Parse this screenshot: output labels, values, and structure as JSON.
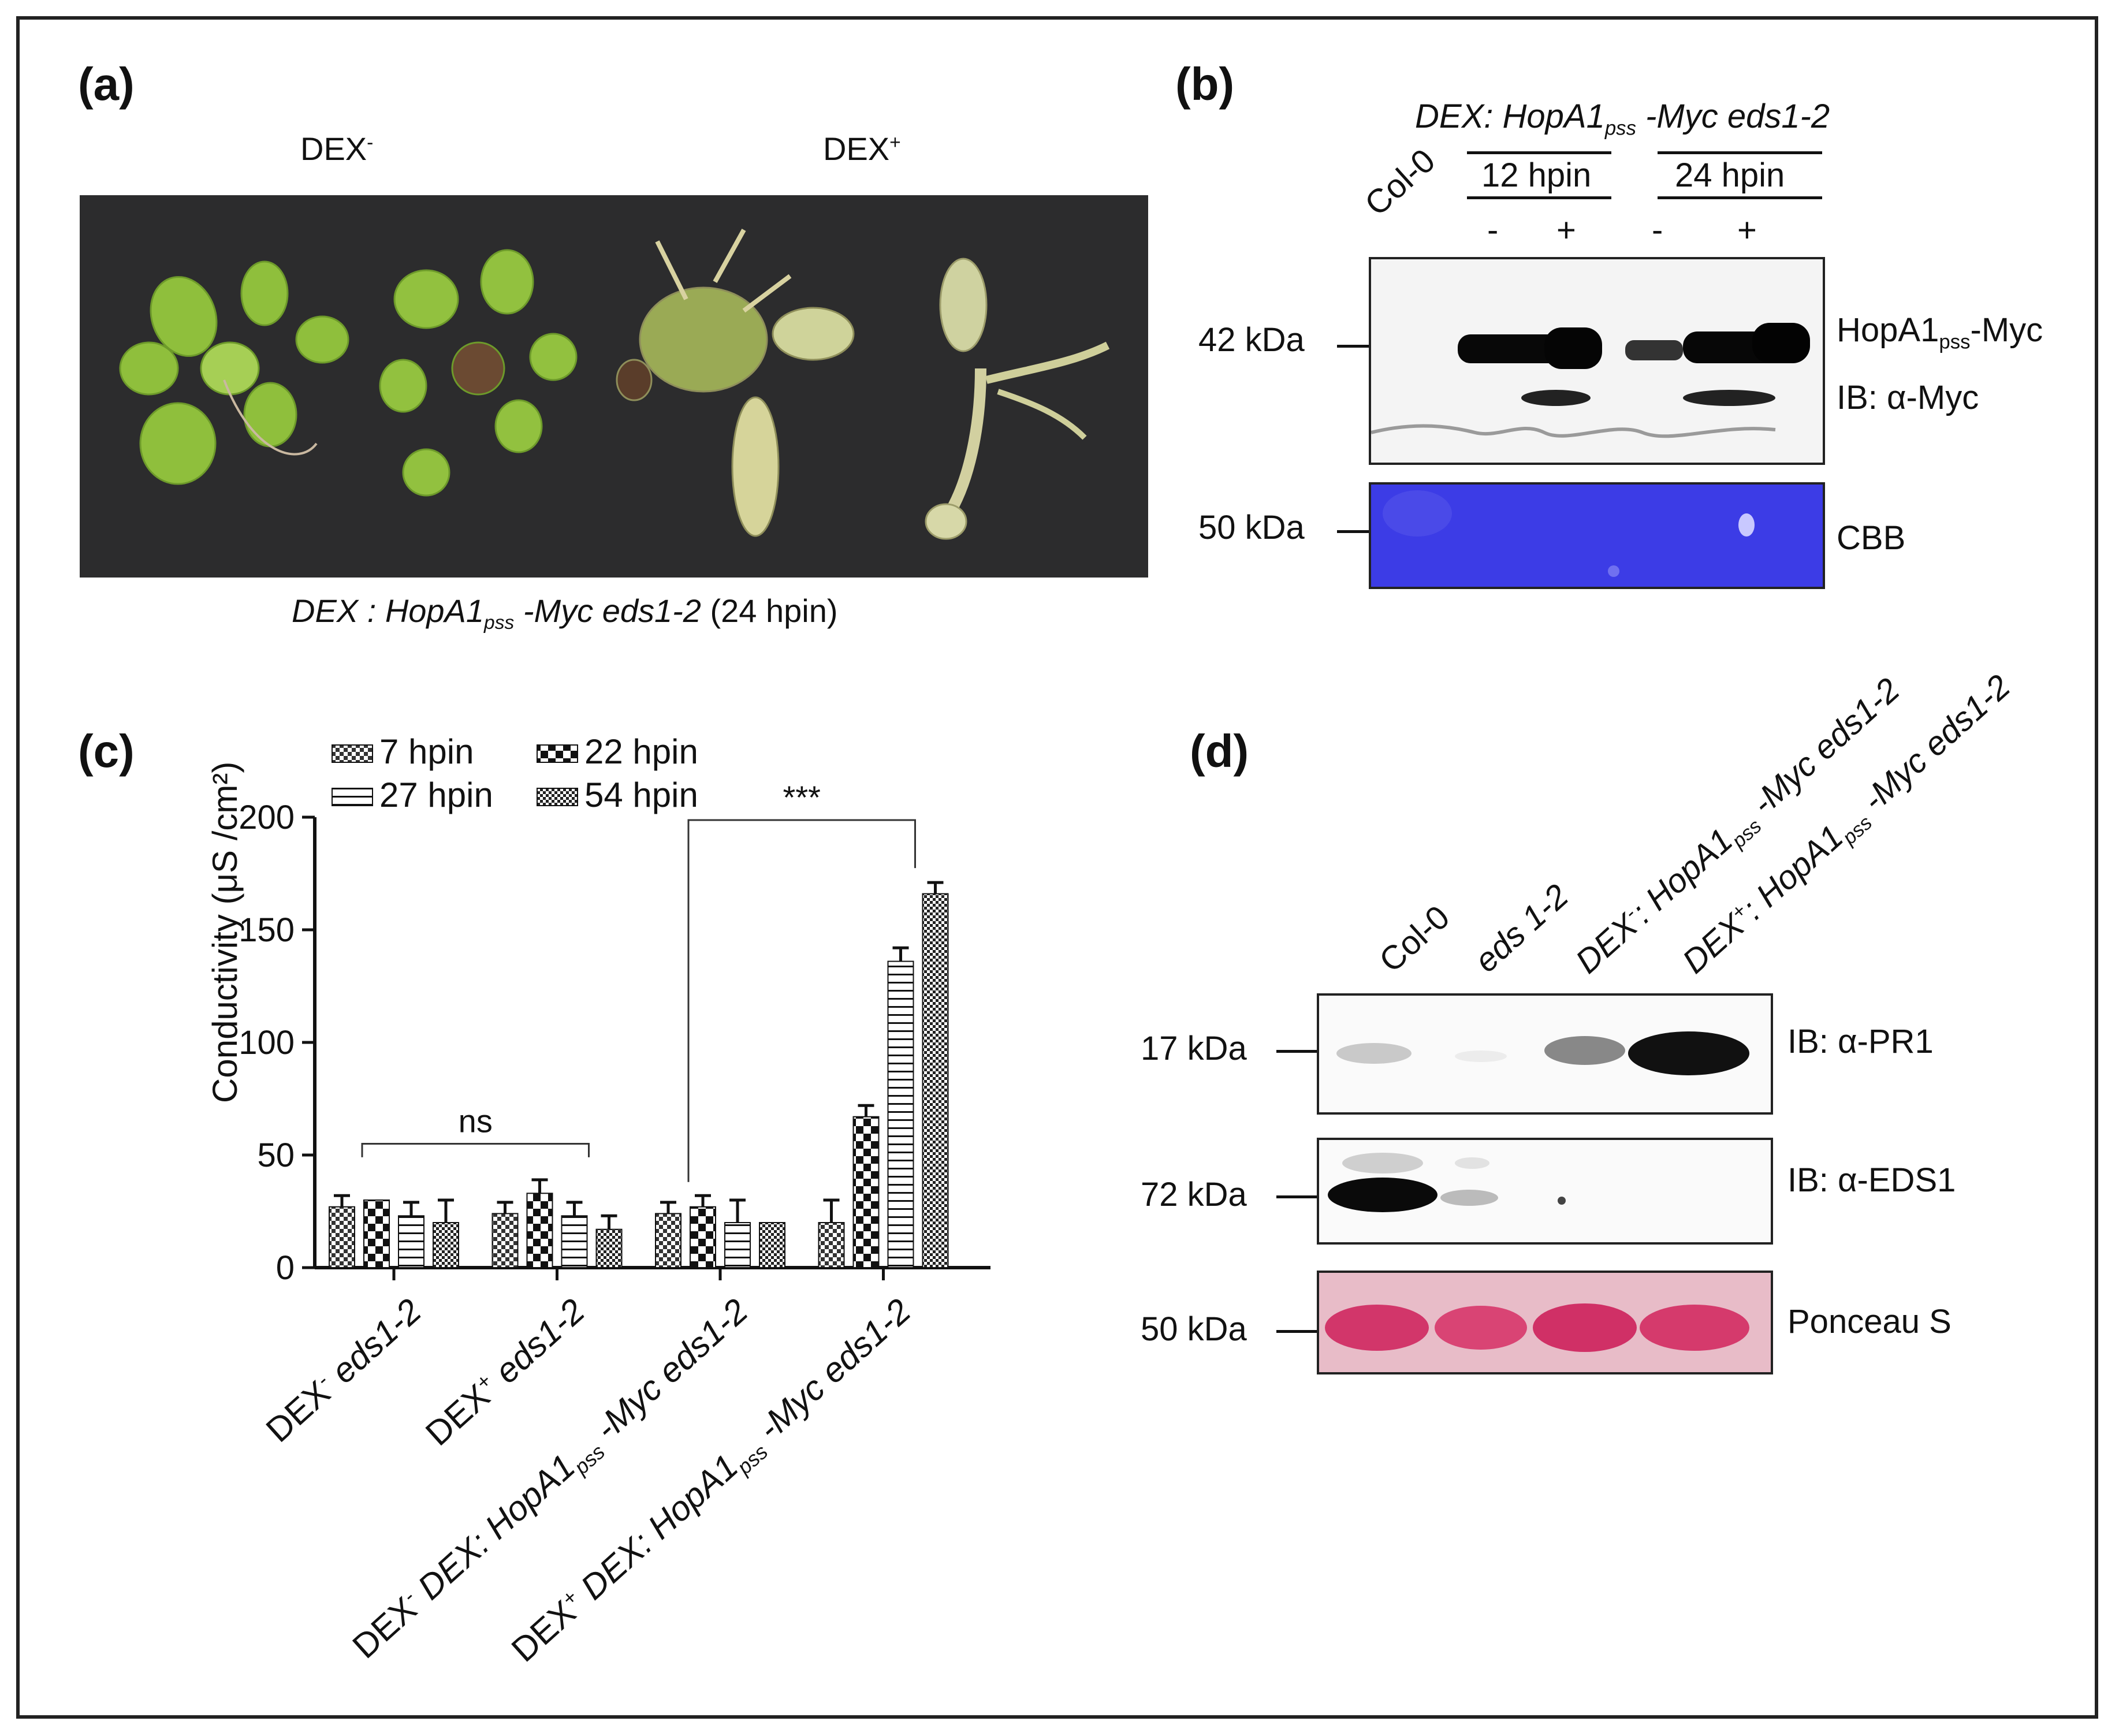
{
  "panels": {
    "a": {
      "label": "(a)",
      "dex_minus": "DEX",
      "dex_minus_sup": "-",
      "dex_plus": "DEX",
      "dex_plus_sup": "+",
      "caption_prefix": "DEX : HopA1",
      "caption_sub": "pss",
      "caption_mid": " -Myc eds1-2",
      "caption_suffix": " (24 hpin)"
    },
    "b": {
      "label": "(b)",
      "construct_prefix": "DEX: HopA1",
      "construct_sub": "pss",
      "construct_suffix": " -Myc eds1-2",
      "col0": "Col-0",
      "time1": "12 hpin",
      "time2": "24 hpin",
      "signs": [
        "-",
        "+",
        "-",
        "+"
      ],
      "marker1": "42 kDa",
      "marker2": "50 kDa",
      "band_label_prefix": "HopA1",
      "band_label_sub": "pss",
      "band_label_suffix": "-Myc",
      "ib_label": "IB: α-Myc",
      "stain_label": "CBB"
    },
    "d": {
      "label": "(d)",
      "lanes": [
        "Col-0",
        "eds 1-2"
      ],
      "lane3_prefix": "DEX",
      "lane3_sup": "-",
      "lane3_mid": ": HopA1",
      "lane3_sub": "pss",
      "lane3_suffix": " -Myc eds1-2",
      "lane4_prefix": "DEX",
      "lane4_sup": "+",
      "lane4_mid": ": HopA1",
      "lane4_sub": "pss",
      "lane4_suffix": " -Myc eds1-2",
      "markers": [
        "17 kDa",
        "72 kDa",
        "50 kDa"
      ],
      "blot_labels": [
        "IB: α-PR1",
        "IB: α-EDS1",
        "Ponceau S"
      ]
    }
  },
  "chart_data": {
    "type": "bar",
    "panel_label": "(c)",
    "ylabel": "Conductivity (μS /cm²)",
    "ylim": [
      0,
      200
    ],
    "yticks": [
      "0",
      "50",
      "100",
      "150",
      "200"
    ],
    "legend": [
      "7 hpin",
      "22 hpin",
      "27 hpin",
      "54 hpin"
    ],
    "legend_placement": "top",
    "categories": [
      "DEX- eds1-2",
      "DEX+ eds1-2",
      "DEX- DEX: HopA1 pss -Myc eds1-2",
      "DEX+ DEX: HopA1 pss -Myc eds1-2"
    ],
    "category_labels": [
      {
        "pre": "DEX",
        "sup": "-",
        "post": " eds1-2"
      },
      {
        "pre": "DEX",
        "sup": "+",
        "post": " eds1-2"
      },
      {
        "pre": "DEX",
        "sup": "-",
        "post": " DEX: HopA1",
        "sub": "pss",
        "tail": " -Myc eds1-2"
      },
      {
        "pre": "DEX",
        "sup": "+",
        "post": " DEX: HopA1",
        "sub": "pss",
        "tail": " -Myc eds1-2"
      }
    ],
    "series": [
      {
        "name": "7 hpin",
        "values": [
          27,
          24,
          24,
          20
        ],
        "errors": [
          5,
          5,
          5,
          10
        ]
      },
      {
        "name": "22 hpin",
        "values": [
          30,
          33,
          27,
          67
        ],
        "errors": [
          0,
          6,
          5,
          5
        ]
      },
      {
        "name": "27 hpin",
        "values": [
          23,
          23,
          20,
          136
        ],
        "errors": [
          6,
          6,
          10,
          6
        ]
      },
      {
        "name": "54 hpin",
        "values": [
          20,
          17,
          20,
          166
        ],
        "errors": [
          10,
          6,
          0,
          5
        ]
      }
    ],
    "annotations": [
      {
        "text": "ns",
        "between": [
          0,
          1
        ]
      },
      {
        "text": "***",
        "between": [
          2,
          3
        ]
      }
    ]
  }
}
